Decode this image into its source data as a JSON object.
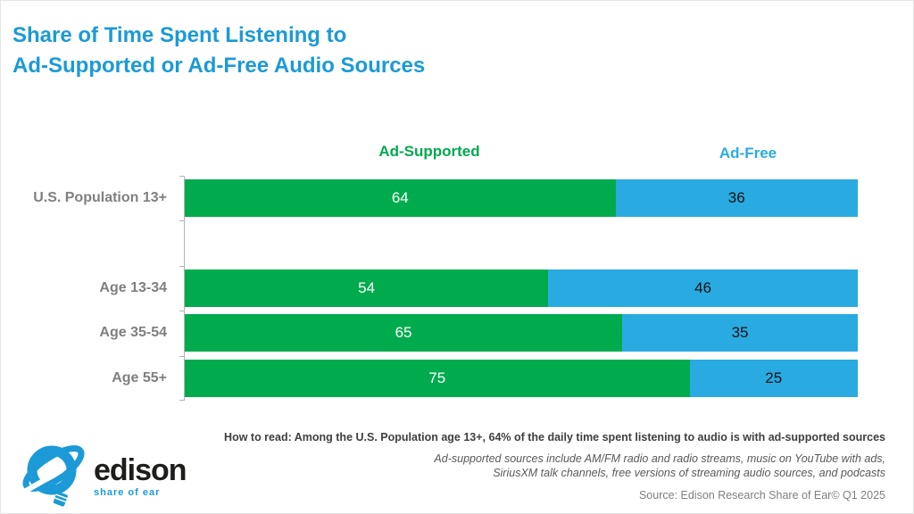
{
  "title": {
    "line1": "Share of Time Spent Listening to",
    "line2": "Ad-Supported or Ad-Free Audio Sources"
  },
  "legend": [
    {
      "label": "Ad-Supported",
      "color": "#00ab4e"
    },
    {
      "label": "Ad-Free",
      "color": "#29abe2"
    }
  ],
  "chart_data": {
    "type": "bar",
    "orientation": "horizontal",
    "stacked": true,
    "categories": [
      "U.S. Population 13+",
      "Age 13-34",
      "Age 35-54",
      "Age 55+"
    ],
    "series": [
      {
        "name": "Ad-Supported",
        "color": "#00ab4e",
        "label_color": "#ffffff",
        "values": [
          64,
          54,
          65,
          75
        ]
      },
      {
        "name": "Ad-Free",
        "color": "#29abe2",
        "label_color": "#111111",
        "values": [
          36,
          46,
          35,
          25
        ]
      }
    ],
    "xlim": [
      0,
      100
    ],
    "value_labels": true,
    "grid": false,
    "legend_position": "top",
    "layout_note": "first category separated from age groups by one empty slot"
  },
  "footnotes": {
    "how_to_read": "How to read: Among the U.S. Population age 13+, 64% of the daily time spent listening to audio is with ad-supported sources",
    "note_line1": "Ad-supported sources include AM/FM radio and radio streams, music on YouTube with ads,",
    "note_line2": "SiriusXM talk channels, free versions of streaming audio sources, and podcasts",
    "source": "Source: Edison Research Share of Ear© Q1 2025"
  },
  "logo": {
    "name": "edison",
    "tagline": "share of ear",
    "brand_blue": "#1b9ad7"
  },
  "colors": {
    "title": "#1b9ad7",
    "ad_supported": "#00ab4e",
    "ad_free": "#29abe2",
    "category_label": "#7f7f7f",
    "axis": "#b3b3b3"
  }
}
